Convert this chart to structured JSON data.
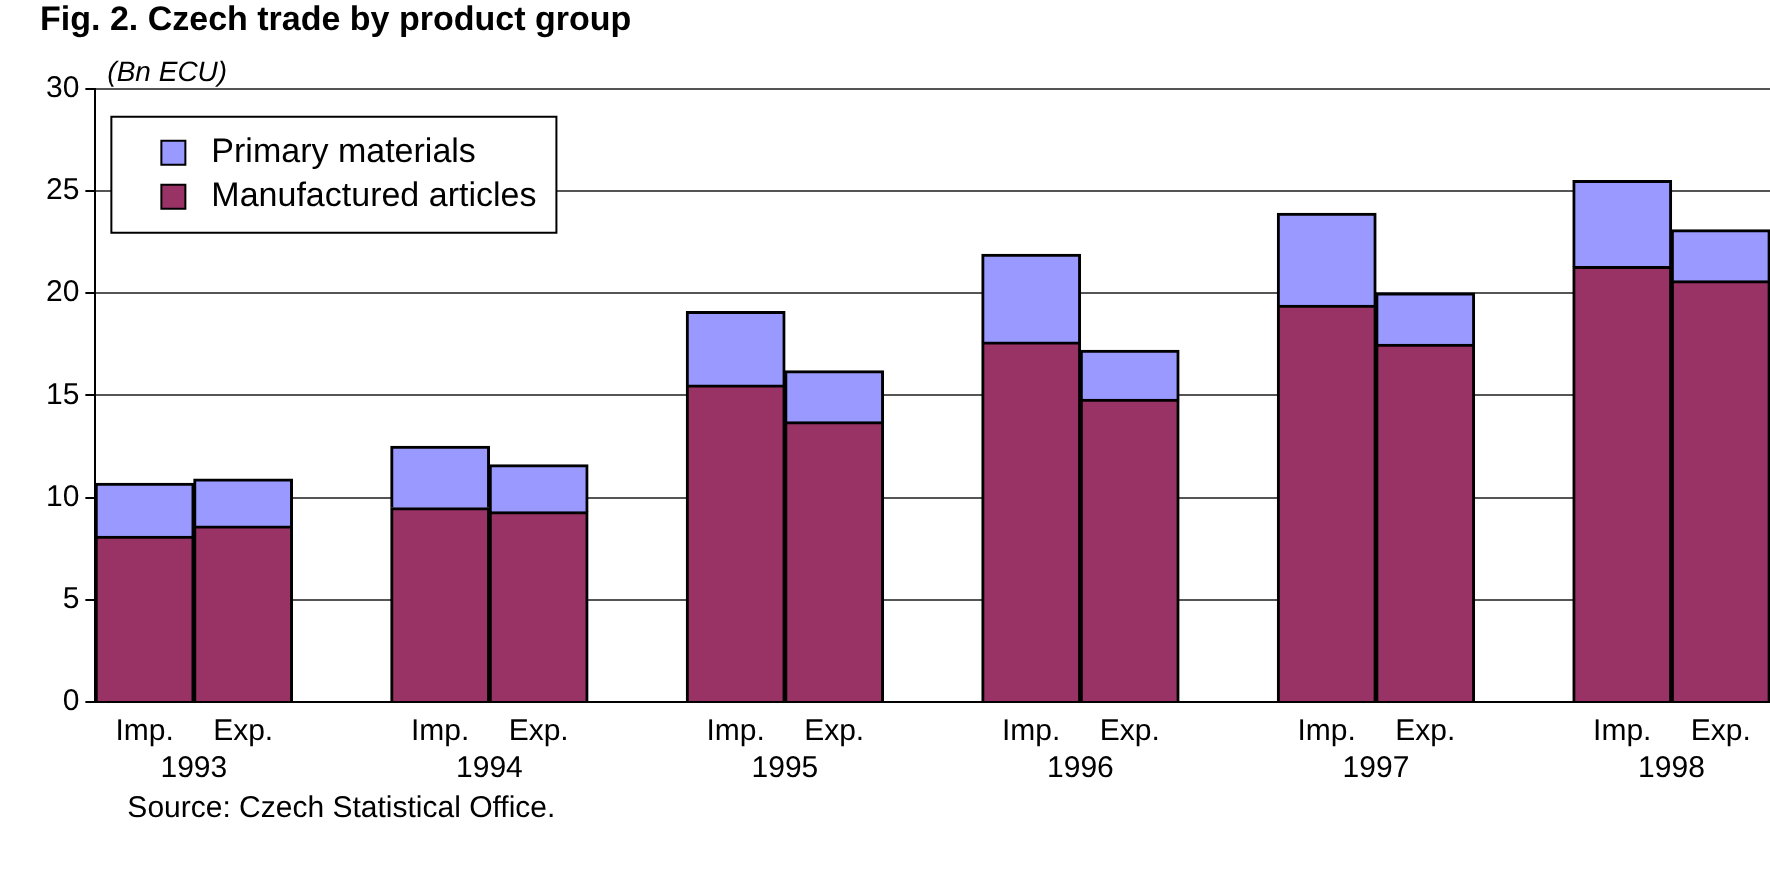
{
  "chart_data": {
    "type": "bar",
    "title": "Fig. 2. Czech trade by product group",
    "ylabel": "(Bn ECU)",
    "categories": [
      "Imp.",
      "Exp.",
      null,
      "Imp.",
      "Exp.",
      null,
      "Imp.",
      "Exp.",
      null,
      "Imp.",
      "Exp.",
      null,
      "Imp.",
      "Exp.",
      null,
      "Imp.",
      "Exp."
    ],
    "series": [
      {
        "name": "Manufactured articles",
        "color": "#993366",
        "values": [
          8.1,
          8.6,
          null,
          9.5,
          9.3,
          null,
          15.5,
          13.7,
          null,
          17.6,
          14.8,
          null,
          19.4,
          17.5,
          null,
          21.3,
          20.6
        ]
      },
      {
        "name": "Primary materials",
        "color": "#9999ff",
        "values": [
          2.6,
          2.3,
          null,
          3.0,
          2.3,
          null,
          3.6,
          2.5,
          null,
          4.3,
          2.4,
          null,
          4.5,
          2.5,
          null,
          4.2,
          2.5
        ]
      }
    ],
    "stacked": true,
    "ylim": [
      0,
      30
    ],
    "yticks": [
      0,
      5,
      10,
      15,
      20,
      25,
      30
    ],
    "grid": "y",
    "legend": "top left",
    "annotations": [
      "1993",
      "1994",
      "1995",
      "1996",
      "1997",
      "1998",
      "Source: Czech Statistical Office."
    ]
  }
}
